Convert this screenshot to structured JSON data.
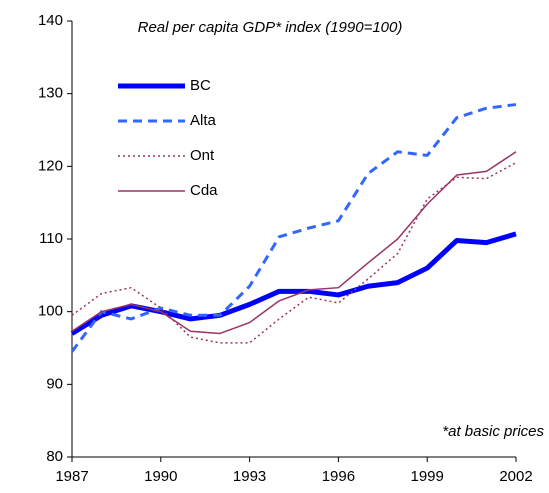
{
  "chart_data": {
    "type": "line",
    "title": "Real per capita GDP* index (1990=100)",
    "annotation": "*at basic prices",
    "x": [
      1987,
      1988,
      1989,
      1990,
      1991,
      1992,
      1993,
      1994,
      1995,
      1996,
      1997,
      1998,
      1999,
      2000,
      2001,
      2002
    ],
    "series": [
      {
        "name": "BC",
        "color": "#0000ff",
        "style": "thick",
        "values": [
          97,
          99.5,
          100.8,
          100,
          99,
          99.5,
          101,
          102.8,
          102.8,
          102.3,
          103.5,
          104,
          106,
          109.8,
          109.5,
          110.7
        ]
      },
      {
        "name": "Alta",
        "color": "#3366ff",
        "style": "dashed",
        "values": [
          94.5,
          100,
          99,
          100.5,
          99.5,
          99.5,
          103.5,
          110.3,
          111.5,
          112.5,
          119,
          122,
          121.5,
          126.7,
          128,
          128.5
        ]
      },
      {
        "name": "Ont",
        "color": "#993366",
        "style": "dotted",
        "values": [
          99.5,
          102.5,
          103.3,
          100.5,
          96.5,
          95.7,
          95.7,
          99,
          102,
          101.2,
          104.5,
          108,
          115.5,
          118.5,
          118.3,
          120.5
        ]
      },
      {
        "name": "Cda",
        "color": "#993366",
        "style": "thin",
        "values": [
          97.3,
          100,
          101,
          100,
          97.3,
          97,
          98.5,
          101.5,
          103,
          103.3,
          106.7,
          110,
          114.8,
          118.8,
          119.3,
          122
        ]
      }
    ],
    "xlim": [
      1987,
      2002
    ],
    "xticks": [
      1987,
      1990,
      1993,
      1996,
      1999,
      2002
    ],
    "ylim": [
      80,
      140
    ],
    "yticks": [
      80,
      90,
      100,
      110,
      120,
      130,
      140
    ],
    "grid": false,
    "legend": "upper left"
  }
}
